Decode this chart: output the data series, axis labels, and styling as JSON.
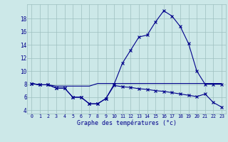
{
  "title": "Graphe des températures (°c)",
  "x": [
    0,
    1,
    2,
    3,
    4,
    5,
    6,
    7,
    8,
    9,
    10,
    11,
    12,
    13,
    14,
    15,
    16,
    17,
    18,
    19,
    20,
    21,
    22,
    23
  ],
  "line_flat": [
    8.1,
    7.9,
    7.9,
    7.7,
    7.7,
    7.7,
    7.7,
    7.7,
    8.1,
    8.1,
    8.1,
    8.1,
    8.1,
    8.1,
    8.1,
    8.1,
    8.1,
    8.1,
    8.1,
    8.1,
    8.1,
    8.1,
    8.1,
    8.1
  ],
  "line_peak": [
    8.1,
    7.9,
    7.9,
    7.4,
    7.4,
    6.0,
    6.0,
    5.0,
    5.0,
    5.8,
    8.0,
    11.2,
    13.2,
    15.2,
    15.5,
    17.5,
    19.2,
    18.4,
    16.8,
    14.2,
    10.0,
    8.0,
    8.0,
    8.0
  ],
  "line_diag": [
    8.1,
    7.9,
    7.9,
    7.4,
    7.4,
    6.0,
    6.0,
    5.0,
    5.0,
    5.8,
    7.8,
    7.6,
    7.5,
    7.3,
    7.2,
    7.0,
    6.9,
    6.7,
    6.5,
    6.3,
    6.1,
    6.5,
    5.2,
    4.5
  ],
  "bg_color": "#cce8e8",
  "line_color": "#00008b",
  "grid_color": "#9dbfbf",
  "ylim": [
    3.5,
    20.2
  ],
  "yticks": [
    4,
    6,
    8,
    10,
    12,
    14,
    16,
    18
  ],
  "xticks": [
    0,
    1,
    2,
    3,
    4,
    5,
    6,
    7,
    8,
    9,
    10,
    11,
    12,
    13,
    14,
    15,
    16,
    17,
    18,
    19,
    20,
    21,
    22,
    23
  ]
}
